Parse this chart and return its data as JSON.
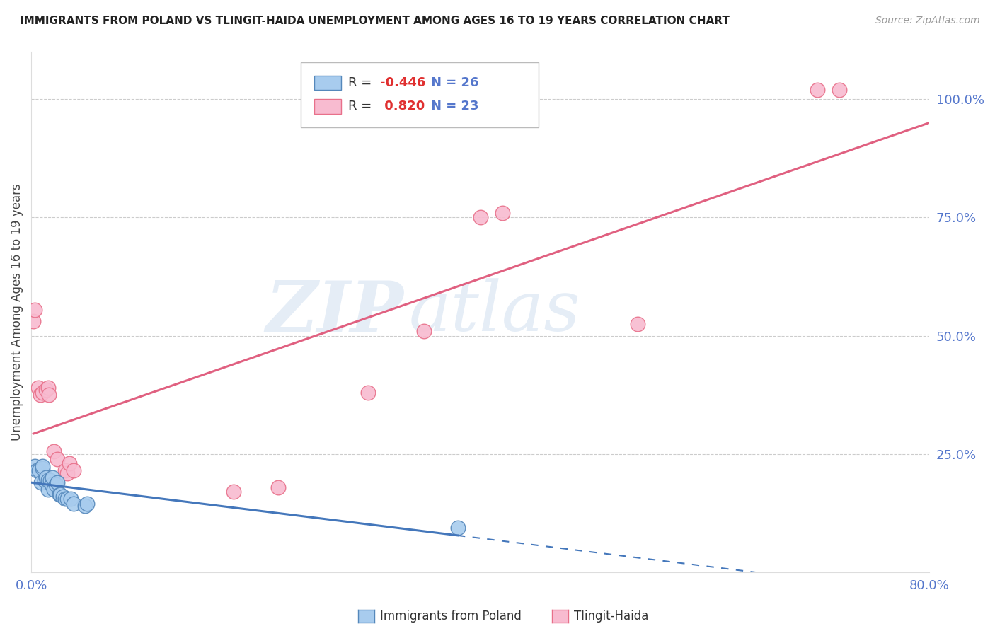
{
  "title": "IMMIGRANTS FROM POLAND VS TLINGIT-HAIDA UNEMPLOYMENT AMONG AGES 16 TO 19 YEARS CORRELATION CHART",
  "source": "Source: ZipAtlas.com",
  "ylabel_left": "Unemployment Among Ages 16 to 19 years",
  "xlim": [
    0.0,
    0.8
  ],
  "ylim": [
    0.0,
    1.1
  ],
  "x_ticks": [
    0.0,
    0.2,
    0.4,
    0.6,
    0.8
  ],
  "x_tick_labels": [
    "0.0%",
    "",
    "",
    "",
    "80.0%"
  ],
  "y_ticks_right": [
    0.25,
    0.5,
    0.75,
    1.0
  ],
  "y_tick_labels_right": [
    "25.0%",
    "50.0%",
    "75.0%",
    "100.0%"
  ],
  "legend_label1": "Immigrants from Poland",
  "legend_label2": "Tlingit-Haida",
  "color_blue_fill": "#A8CCEE",
  "color_blue_edge": "#5588BB",
  "color_blue_line": "#4477BB",
  "color_pink_fill": "#F8BBD0",
  "color_pink_edge": "#E8708A",
  "color_pink_line": "#E06080",
  "color_axis_labels": "#5577CC",
  "color_grid": "#CCCCCC",
  "blue_scatter_x": [
    0.003,
    0.005,
    0.007,
    0.009,
    0.01,
    0.01,
    0.012,
    0.013,
    0.015,
    0.015,
    0.017,
    0.018,
    0.019,
    0.02,
    0.022,
    0.023,
    0.025,
    0.026,
    0.028,
    0.03,
    0.032,
    0.035,
    0.038,
    0.048,
    0.05,
    0.38
  ],
  "blue_scatter_y": [
    0.225,
    0.215,
    0.215,
    0.19,
    0.22,
    0.225,
    0.195,
    0.2,
    0.175,
    0.195,
    0.195,
    0.185,
    0.2,
    0.175,
    0.185,
    0.19,
    0.165,
    0.165,
    0.16,
    0.155,
    0.155,
    0.155,
    0.145,
    0.14,
    0.145,
    0.095
  ],
  "pink_scatter_x": [
    0.002,
    0.003,
    0.006,
    0.008,
    0.01,
    0.013,
    0.015,
    0.016,
    0.02,
    0.023,
    0.03,
    0.032,
    0.034,
    0.038,
    0.18,
    0.22,
    0.3,
    0.35,
    0.4,
    0.42,
    0.54,
    0.7,
    0.72
  ],
  "pink_scatter_y": [
    0.53,
    0.555,
    0.39,
    0.375,
    0.38,
    0.385,
    0.39,
    0.375,
    0.255,
    0.24,
    0.215,
    0.21,
    0.23,
    0.215,
    0.17,
    0.18,
    0.38,
    0.51,
    0.75,
    0.76,
    0.525,
    1.02,
    1.02
  ],
  "blue_line_x_solid_end": 0.38,
  "pink_line_x_start": 0.002,
  "pink_line_x_end": 0.8
}
